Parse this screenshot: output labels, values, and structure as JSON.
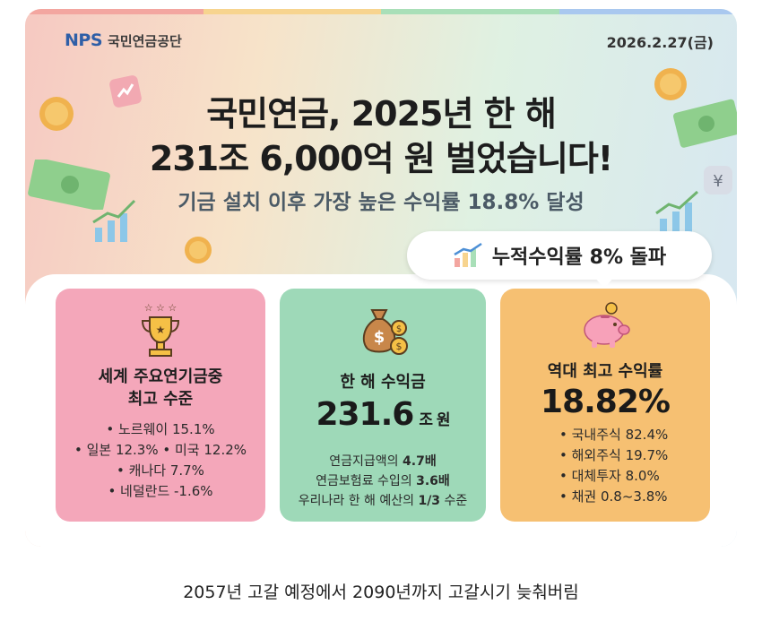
{
  "header": {
    "logo_mark": "NPS",
    "org_name": "국민연금공단",
    "date": "2026.2.27(금)"
  },
  "headline": {
    "line1": "국민연금, 2025년 한 해",
    "line2": "231조 6,000억 원 벌었습니다!",
    "subline": "기금 설치 이후 가장 높은 수익률 18.8% 달성"
  },
  "bubble": {
    "text": "누적수익률 8% 돌파",
    "icon": "bar-chart-rising-icon"
  },
  "boxes": {
    "world": {
      "icon": "trophy-icon",
      "title_line1": "세계 주요연기금중",
      "title_line2": "최고 수준",
      "items": [
        "• 노르웨이 15.1%",
        "• 일본 12.3% • 미국 12.2%",
        "• 캐나다 7.7%",
        "• 네덜란드 -1.6%"
      ]
    },
    "profit": {
      "icon": "money-bag-icon",
      "title": "한 해 수익금",
      "value": "231.6",
      "unit": "조 원",
      "lines": [
        {
          "prefix": "연금지급액의 ",
          "bold": "4.7배",
          "suffix": ""
        },
        {
          "prefix": "연금보험료 수입의 ",
          "bold": "3.6배",
          "suffix": ""
        },
        {
          "prefix": "우리나라 한 해 예산의 ",
          "bold": "1/3",
          "suffix": " 수준"
        }
      ]
    },
    "record": {
      "icon": "piggy-bank-icon",
      "title": "역대 최고 수익률",
      "value": "18.82%",
      "items": [
        "• 국내주식 82.4%",
        "• 해외주식 19.7%",
        "• 대체투자 8.0%",
        "• 채권 0.8~3.8%"
      ]
    }
  },
  "caption": "2057년 고갈 예정에서 2090년까지 고갈시기 늦춰버림",
  "colors": {
    "pink_box": "#f4a7ba",
    "green_box": "#9ed9b8",
    "orange_box": "#f6c072",
    "nps_blue": "#2f5fa7"
  }
}
